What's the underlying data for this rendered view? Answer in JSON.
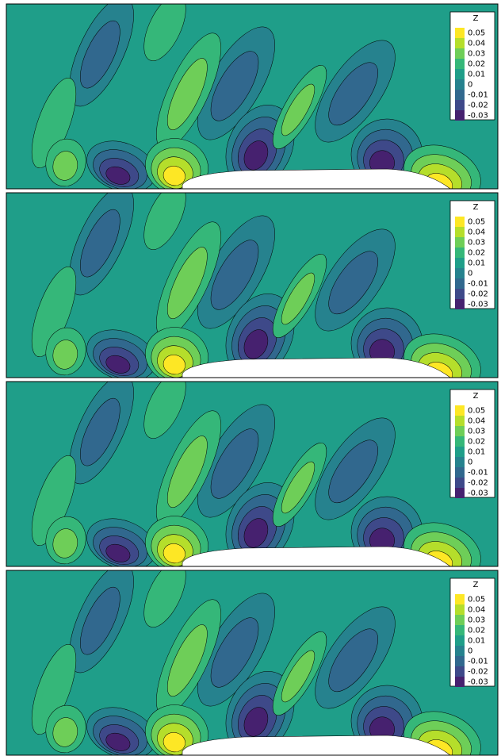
{
  "chart_data": [
    {
      "type": "contour",
      "legend_title": "Z",
      "legend": "upper right",
      "colorbar_ticks": [
        0.05,
        0.04,
        0.03,
        0.02,
        0.01,
        0,
        -0.01,
        -0.02,
        -0.03
      ],
      "colors": [
        "#fde725",
        "#b5de2b",
        "#6ece58",
        "#35b779",
        "#1f9e89",
        "#26828e",
        "#31688e",
        "#3e4989",
        "#46216f"
      ]
    },
    {
      "type": "contour",
      "legend_title": "Z",
      "legend": "upper right",
      "colorbar_ticks": [
        0.05,
        0.04,
        0.03,
        0.02,
        0.01,
        0,
        -0.01,
        -0.02,
        -0.03
      ],
      "colors": [
        "#fde725",
        "#b5de2b",
        "#6ece58",
        "#35b779",
        "#1f9e89",
        "#26828e",
        "#31688e",
        "#3e4989",
        "#46216f"
      ]
    },
    {
      "type": "contour",
      "legend_title": "Z",
      "legend": "upper right",
      "colorbar_ticks": [
        0.05,
        0.04,
        0.03,
        0.02,
        0.01,
        0,
        -0.01,
        -0.02,
        -0.03
      ],
      "colors": [
        "#fde725",
        "#b5de2b",
        "#6ece58",
        "#35b779",
        "#1f9e89",
        "#26828e",
        "#31688e",
        "#3e4989",
        "#46216f"
      ]
    },
    {
      "type": "contour",
      "legend_title": "Z",
      "legend": "upper right",
      "colorbar_ticks": [
        0.05,
        0.04,
        0.03,
        0.02,
        0.01,
        0,
        -0.01,
        -0.02,
        -0.03
      ],
      "colors": [
        "#fde725",
        "#b5de2b",
        "#6ece58",
        "#35b779",
        "#1f9e89",
        "#26828e",
        "#31688e",
        "#3e4989",
        "#46216f"
      ]
    }
  ]
}
